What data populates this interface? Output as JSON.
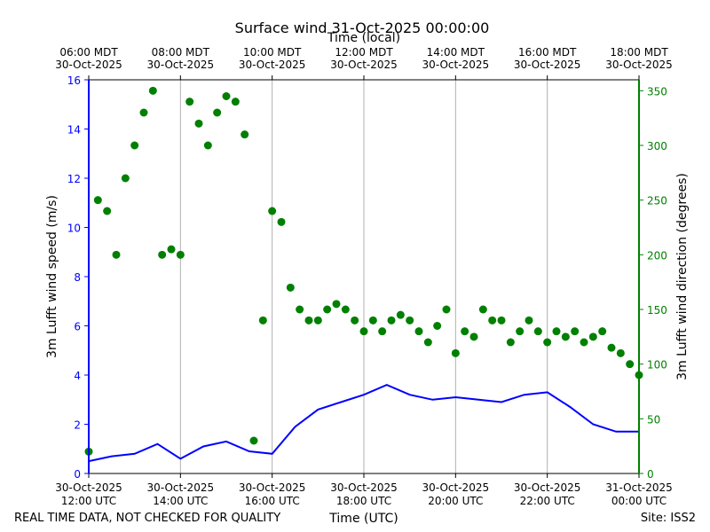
{
  "chart_data": {
    "type": "line+scatter",
    "title": "Surface wind 31-Oct-2025 00:00:00",
    "top_axis_label": "Time (local)",
    "top_ticks": [
      {
        "time": "06:00 MDT",
        "date": "30-Oct-2025"
      },
      {
        "time": "08:00 MDT",
        "date": "30-Oct-2025"
      },
      {
        "time": "10:00 MDT",
        "date": "30-Oct-2025"
      },
      {
        "time": "12:00 MDT",
        "date": "30-Oct-2025"
      },
      {
        "time": "14:00 MDT",
        "date": "30-Oct-2025"
      },
      {
        "time": "16:00 MDT",
        "date": "30-Oct-2025"
      },
      {
        "time": "18:00 MDT",
        "date": "30-Oct-2025"
      }
    ],
    "bottom_ticks": [
      {
        "date": "30-Oct-2025",
        "time": "12:00 UTC"
      },
      {
        "date": "30-Oct-2025",
        "time": "14:00 UTC"
      },
      {
        "date": "30-Oct-2025",
        "time": "16:00 UTC"
      },
      {
        "date": "30-Oct-2025",
        "time": "18:00 UTC"
      },
      {
        "date": "30-Oct-2025",
        "time": "20:00 UTC"
      },
      {
        "date": "30-Oct-2025",
        "time": "22:00 UTC"
      },
      {
        "date": "31-Oct-2025",
        "time": "00:00 UTC"
      }
    ],
    "xlabel": "Time (UTC)",
    "xlim_hours_utc": [
      12,
      24
    ],
    "left_axis": {
      "label": "3m Lufft wind speed (m/s)",
      "ylim": [
        0,
        16
      ],
      "ticks": [
        "0",
        "2",
        "4",
        "6",
        "8",
        "10",
        "12",
        "14",
        "16"
      ],
      "color": "#0000ff"
    },
    "right_axis": {
      "label": "3m Lufft wind direction (degrees)",
      "ylim": [
        0,
        360
      ],
      "ticks": [
        "0",
        "50",
        "100",
        "150",
        "200",
        "250",
        "300",
        "350"
      ],
      "color": "#008000"
    },
    "series": [
      {
        "name": "wind speed",
        "axis": "left",
        "style": "line",
        "color": "#0000ff",
        "x": [
          12.0,
          12.5,
          13.0,
          13.5,
          14.0,
          14.5,
          15.0,
          15.5,
          16.0,
          16.5,
          17.0,
          17.5,
          18.0,
          18.5,
          19.0,
          19.5,
          20.0,
          20.5,
          21.0,
          21.5,
          22.0,
          22.5,
          23.0,
          23.5,
          24.0
        ],
        "y": [
          0.5,
          0.7,
          0.8,
          1.2,
          0.6,
          1.1,
          1.3,
          0.9,
          0.8,
          1.9,
          2.6,
          2.9,
          3.2,
          3.6,
          3.2,
          3.0,
          3.1,
          3.0,
          2.9,
          3.2,
          3.3,
          2.7,
          2.0,
          1.7,
          1.7
        ]
      },
      {
        "name": "wind direction",
        "axis": "right",
        "style": "scatter",
        "color": "#008000",
        "x": [
          12.0,
          12.2,
          12.4,
          12.6,
          12.8,
          13.0,
          13.2,
          13.4,
          13.6,
          13.8,
          14.0,
          14.2,
          14.4,
          14.6,
          14.8,
          15.0,
          15.2,
          15.4,
          15.6,
          15.8,
          16.0,
          16.2,
          16.4,
          16.6,
          16.8,
          17.0,
          17.2,
          17.4,
          17.6,
          17.8,
          18.0,
          18.2,
          18.4,
          18.6,
          18.8,
          19.0,
          19.2,
          19.4,
          19.6,
          19.8,
          20.0,
          20.2,
          20.4,
          20.6,
          20.8,
          21.0,
          21.2,
          21.4,
          21.6,
          21.8,
          22.0,
          22.2,
          22.4,
          22.6,
          22.8,
          23.0,
          23.2,
          23.4,
          23.6,
          23.8,
          24.0
        ],
        "y": [
          20,
          250,
          240,
          200,
          270,
          300,
          330,
          350,
          200,
          205,
          200,
          340,
          320,
          300,
          330,
          345,
          340,
          310,
          30,
          140,
          240,
          230,
          170,
          150,
          140,
          140,
          150,
          155,
          150,
          140,
          130,
          140,
          130,
          140,
          145,
          140,
          130,
          120,
          135,
          150,
          110,
          130,
          125,
          150,
          140,
          140,
          120,
          130,
          140,
          130,
          120,
          130,
          125,
          130,
          120,
          125,
          130,
          115,
          110,
          100,
          90
        ]
      }
    ],
    "footer_left": "REAL TIME DATA, NOT CHECKED FOR QUALITY",
    "footer_right": "Site: ISS2"
  }
}
